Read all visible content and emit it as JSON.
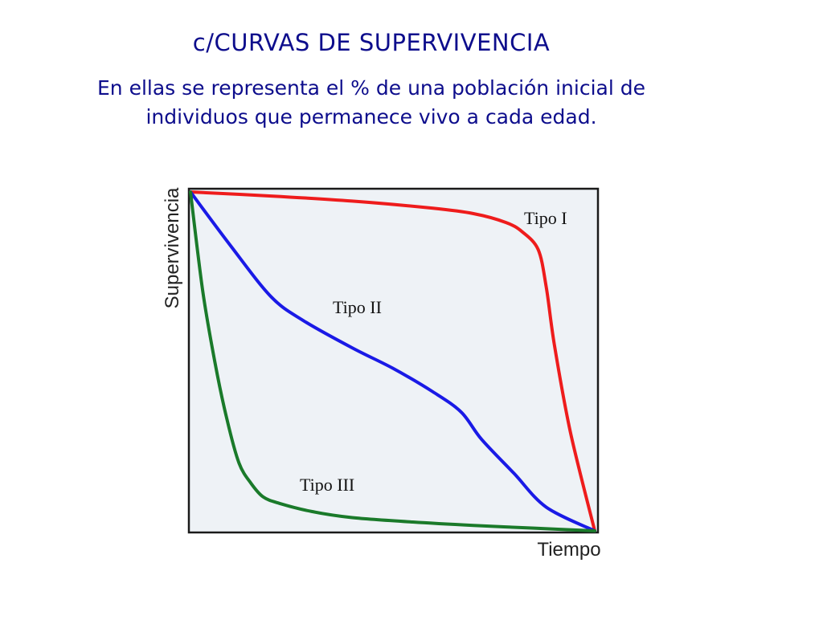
{
  "slide": {
    "title": "c/CURVAS DE SUPERVIVENCIA",
    "subtitle": "En ellas se representa el % de una población inicial de individuos que permanece vivo a cada edad."
  },
  "colors": {
    "text": "#0d0d8c",
    "plot_background": "#eef2f6",
    "tipo_i": "#ee1c1c",
    "tipo_ii": "#1a1ae6",
    "tipo_iii": "#1a7a2a"
  },
  "chart_data": {
    "type": "line",
    "title": "",
    "xlabel": "Tiempo",
    "ylabel": "Supervivencia",
    "xlim": [
      0,
      100
    ],
    "ylim": [
      0,
      100
    ],
    "grid": false,
    "legend": "none",
    "series": [
      {
        "name": "Tipo I",
        "color": "#ee1c1c",
        "x": [
          0,
          20,
          40,
          60,
          70,
          78,
          82,
          86,
          88,
          90,
          94,
          100
        ],
        "y": [
          100,
          98.8,
          97.3,
          95.2,
          93.6,
          91,
          88.3,
          83,
          72,
          55,
          29,
          0
        ]
      },
      {
        "name": "Tipo II",
        "color": "#1a1ae6",
        "x": [
          0,
          10,
          20,
          28,
          40,
          50,
          60,
          67,
          72,
          80,
          88,
          100
        ],
        "y": [
          100,
          84,
          69,
          62,
          54,
          48,
          41,
          35,
          27,
          17,
          7,
          0
        ]
      },
      {
        "name": "Tipo III",
        "color": "#1a7a2a",
        "x": [
          0,
          3,
          6,
          9,
          12,
          15,
          18,
          22,
          30,
          40,
          55,
          70,
          85,
          100
        ],
        "y": [
          100,
          71,
          50,
          33,
          20,
          14,
          10,
          8.1,
          5.7,
          3.9,
          2.6,
          1.6,
          0.8,
          0
        ]
      }
    ]
  }
}
